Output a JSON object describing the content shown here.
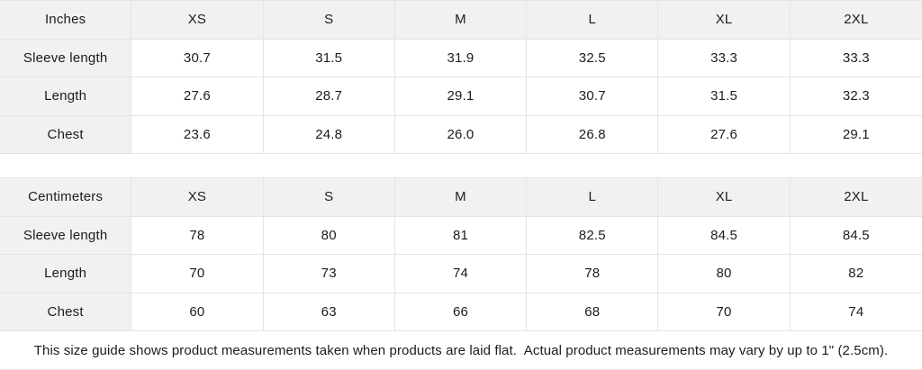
{
  "colors": {
    "header_bg": "#f1f1f1",
    "cell_bg": "#ffffff",
    "border": "#e4e4e4",
    "text": "#1c1c1c"
  },
  "tables": [
    {
      "unit_header": "Inches",
      "size_headers": [
        "XS",
        "S",
        "M",
        "L",
        "XL",
        "2XL"
      ],
      "rows": [
        {
          "label": "Sleeve length",
          "values": [
            "30.7",
            "31.5",
            "31.9",
            "32.5",
            "33.3",
            "33.3"
          ]
        },
        {
          "label": "Length",
          "values": [
            "27.6",
            "28.7",
            "29.1",
            "30.7",
            "31.5",
            "32.3"
          ]
        },
        {
          "label": "Chest",
          "values": [
            "23.6",
            "24.8",
            "26.0",
            "26.8",
            "27.6",
            "29.1"
          ]
        }
      ]
    },
    {
      "unit_header": "Centimeters",
      "size_headers": [
        "XS",
        "S",
        "M",
        "L",
        "XL",
        "2XL"
      ],
      "rows": [
        {
          "label": "Sleeve length",
          "values": [
            "78",
            "80",
            "81",
            "82.5",
            "84.5",
            "84.5"
          ]
        },
        {
          "label": "Length",
          "values": [
            "70",
            "73",
            "74",
            "78",
            "80",
            "82"
          ]
        },
        {
          "label": "Chest",
          "values": [
            "60",
            "63",
            "66",
            "68",
            "70",
            "74"
          ]
        }
      ]
    }
  ],
  "footer": {
    "note": "This size guide shows product measurements taken when products are laid flat.  Actual product measurements may vary by up to 1\" (2.5cm)."
  }
}
